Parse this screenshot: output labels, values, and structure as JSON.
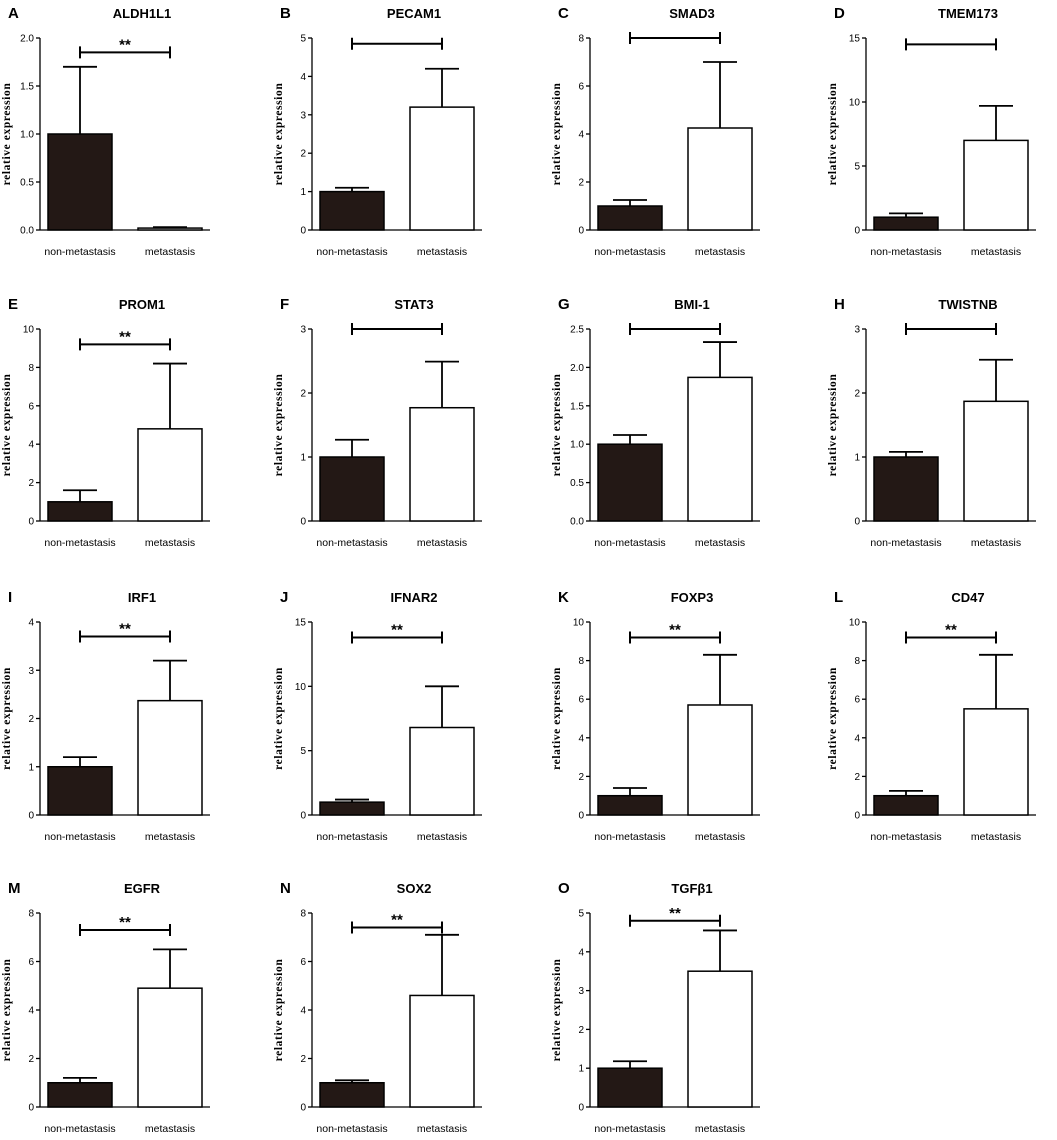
{
  "figure": {
    "ylabel": "relative expression",
    "categories": [
      "non-metastasis",
      "metastasis"
    ],
    "bar_colors": {
      "non_metastasis": "#231815",
      "metastasis": "#ffffff"
    }
  },
  "chart_data": [
    {
      "type": "bar",
      "panel": "A",
      "title": "ALDH1L1",
      "ylabel": "relative expression",
      "categories": [
        "non-metastasis",
        "metastasis"
      ],
      "values": [
        1.0,
        0.02
      ],
      "errors": [
        0.7,
        0.01
      ],
      "ylim": [
        0,
        2.0
      ],
      "yticks": [
        0,
        0.5,
        1.0,
        1.5,
        2.0
      ],
      "tick_labels": [
        "0.0",
        "0.5",
        "1.0",
        "1.5",
        "2.0"
      ],
      "significance": "**",
      "sig_level": 1.85
    },
    {
      "type": "bar",
      "panel": "B",
      "title": "PECAM1",
      "ylabel": "relative expression",
      "categories": [
        "non-metastasis",
        "metastasis"
      ],
      "values": [
        1.0,
        3.2
      ],
      "errors": [
        0.1,
        1.0
      ],
      "ylim": [
        0,
        5
      ],
      "yticks": [
        0,
        1,
        2,
        3,
        4,
        5
      ],
      "tick_labels": [
        "0",
        "1",
        "2",
        "3",
        "4",
        "5"
      ],
      "significance": "",
      "sig_level": 4.85
    },
    {
      "type": "bar",
      "panel": "C",
      "title": "SMAD3",
      "ylabel": "relative expression",
      "categories": [
        "non-metastasis",
        "metastasis"
      ],
      "values": [
        1.0,
        4.25
      ],
      "errors": [
        0.25,
        2.75
      ],
      "ylim": [
        0,
        8
      ],
      "yticks": [
        0,
        2,
        4,
        6,
        8
      ],
      "tick_labels": [
        "0",
        "2",
        "4",
        "6",
        "8"
      ],
      "significance": "",
      "sig_level": 8.0
    },
    {
      "type": "bar",
      "panel": "D",
      "title": "TMEM173",
      "ylabel": "relative expression",
      "categories": [
        "non-metastasis",
        "metastasis"
      ],
      "values": [
        1.0,
        7.0
      ],
      "errors": [
        0.3,
        2.7
      ],
      "ylim": [
        0,
        15
      ],
      "yticks": [
        0,
        5,
        10,
        15
      ],
      "tick_labels": [
        "0",
        "5",
        "10",
        "15"
      ],
      "significance": "",
      "sig_level": 14.5
    },
    {
      "type": "bar",
      "panel": "E",
      "title": "PROM1",
      "ylabel": "relative expression",
      "categories": [
        "non-metastasis",
        "metastasis"
      ],
      "values": [
        1.0,
        4.8
      ],
      "errors": [
        0.6,
        3.4
      ],
      "ylim": [
        0,
        10
      ],
      "yticks": [
        0,
        2,
        4,
        6,
        8,
        10
      ],
      "tick_labels": [
        "0",
        "2",
        "4",
        "6",
        "8",
        "10"
      ],
      "significance": "**",
      "sig_level": 9.2
    },
    {
      "type": "bar",
      "panel": "F",
      "title": "STAT3",
      "ylabel": "relative expression",
      "categories": [
        "non-metastasis",
        "metastasis"
      ],
      "values": [
        1.0,
        1.77
      ],
      "errors": [
        0.27,
        0.72
      ],
      "ylim": [
        0,
        3
      ],
      "yticks": [
        0,
        1,
        2,
        3
      ],
      "tick_labels": [
        "0",
        "1",
        "2",
        "3"
      ],
      "significance": "",
      "sig_level": 3.0
    },
    {
      "type": "bar",
      "panel": "G",
      "title": "BMI-1",
      "ylabel": "relative expression",
      "categories": [
        "non-metastasis",
        "metastasis"
      ],
      "values": [
        1.0,
        1.87
      ],
      "errors": [
        0.12,
        0.46
      ],
      "ylim": [
        0,
        2.5
      ],
      "yticks": [
        0,
        0.5,
        1.0,
        1.5,
        2.0,
        2.5
      ],
      "tick_labels": [
        "0.0",
        "0.5",
        "1.0",
        "1.5",
        "2.0",
        "2.5"
      ],
      "significance": "",
      "sig_level": 2.5
    },
    {
      "type": "bar",
      "panel": "H",
      "title": "TWISTNB",
      "ylabel": "relative expression",
      "categories": [
        "non-metastasis",
        "metastasis"
      ],
      "values": [
        1.0,
        1.87
      ],
      "errors": [
        0.08,
        0.65
      ],
      "ylim": [
        0,
        3
      ],
      "yticks": [
        0,
        1,
        2,
        3
      ],
      "tick_labels": [
        "0",
        "1",
        "2",
        "3"
      ],
      "significance": "",
      "sig_level": 3.0
    },
    {
      "type": "bar",
      "panel": "I",
      "title": "IRF1",
      "ylabel": "relative expression",
      "categories": [
        "non-metastasis",
        "metastasis"
      ],
      "values": [
        1.0,
        2.37
      ],
      "errors": [
        0.2,
        0.83
      ],
      "ylim": [
        0,
        4
      ],
      "yticks": [
        0,
        1,
        2,
        3,
        4
      ],
      "tick_labels": [
        "0",
        "1",
        "2",
        "3",
        "4"
      ],
      "significance": "**",
      "sig_level": 3.7
    },
    {
      "type": "bar",
      "panel": "J",
      "title": "IFNAR2",
      "ylabel": "relative expression",
      "categories": [
        "non-metastasis",
        "metastasis"
      ],
      "values": [
        1.0,
        6.8
      ],
      "errors": [
        0.2,
        3.2
      ],
      "ylim": [
        0,
        15
      ],
      "yticks": [
        0,
        5,
        10,
        15
      ],
      "tick_labels": [
        "0",
        "5",
        "10",
        "15"
      ],
      "significance": "**",
      "sig_level": 13.8
    },
    {
      "type": "bar",
      "panel": "K",
      "title": "FOXP3",
      "ylabel": "relative expression",
      "categories": [
        "non-metastasis",
        "metastasis"
      ],
      "values": [
        1.0,
        5.7
      ],
      "errors": [
        0.4,
        2.6
      ],
      "ylim": [
        0,
        10
      ],
      "yticks": [
        0,
        2,
        4,
        6,
        8,
        10
      ],
      "tick_labels": [
        "0",
        "2",
        "4",
        "6",
        "8",
        "10"
      ],
      "significance": "**",
      "sig_level": 9.2
    },
    {
      "type": "bar",
      "panel": "L",
      "title": "CD47",
      "ylabel": "relative expression",
      "categories": [
        "non-metastasis",
        "metastasis"
      ],
      "values": [
        1.0,
        5.5
      ],
      "errors": [
        0.25,
        2.8
      ],
      "ylim": [
        0,
        10
      ],
      "yticks": [
        0,
        2,
        4,
        6,
        8,
        10
      ],
      "tick_labels": [
        "0",
        "2",
        "4",
        "6",
        "8",
        "10"
      ],
      "significance": "**",
      "sig_level": 9.2
    },
    {
      "type": "bar",
      "panel": "M",
      "title": "EGFR",
      "ylabel": "relative expression",
      "categories": [
        "non-metastasis",
        "metastasis"
      ],
      "values": [
        1.0,
        4.9
      ],
      "errors": [
        0.2,
        1.6
      ],
      "ylim": [
        0,
        8
      ],
      "yticks": [
        0,
        2,
        4,
        6,
        8
      ],
      "tick_labels": [
        "0",
        "2",
        "4",
        "6",
        "8"
      ],
      "significance": "**",
      "sig_level": 7.3
    },
    {
      "type": "bar",
      "panel": "N",
      "title": "SOX2",
      "ylabel": "relative expression",
      "categories": [
        "non-metastasis",
        "metastasis"
      ],
      "values": [
        1.0,
        4.6
      ],
      "errors": [
        0.1,
        2.5
      ],
      "ylim": [
        0,
        8
      ],
      "yticks": [
        0,
        2,
        4,
        6,
        8
      ],
      "tick_labels": [
        "0",
        "2",
        "4",
        "6",
        "8"
      ],
      "significance": "**",
      "sig_level": 7.4
    },
    {
      "type": "bar",
      "panel": "O",
      "title": "TGFβ1",
      "ylabel": "relative expression",
      "categories": [
        "non-metastasis",
        "metastasis"
      ],
      "values": [
        1.0,
        3.5
      ],
      "errors": [
        0.18,
        1.05
      ],
      "ylim": [
        0,
        5
      ],
      "yticks": [
        0,
        1,
        2,
        3,
        4,
        5
      ],
      "tick_labels": [
        "0",
        "1",
        "2",
        "3",
        "4",
        "5"
      ],
      "significance": "**",
      "sig_level": 4.8
    }
  ]
}
